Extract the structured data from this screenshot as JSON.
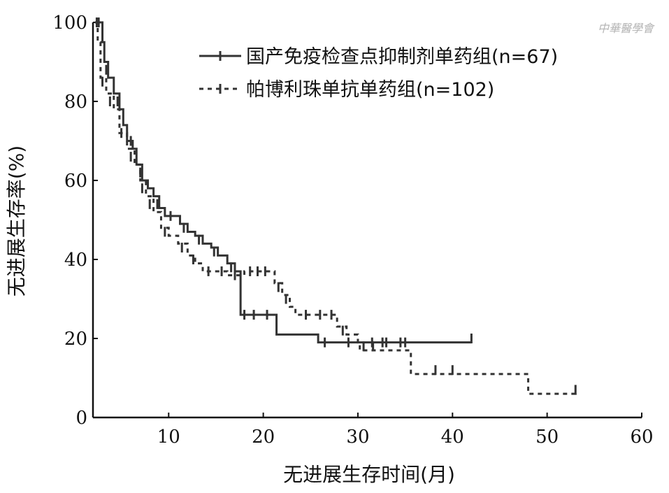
{
  "watermark": "中華醫學會",
  "chart_data": {
    "type": "line",
    "title": "",
    "xlabel": "无进展生存时间(月)",
    "ylabel": "无进展生存率(%)",
    "xlim": [
      2,
      60
    ],
    "ylim": [
      0,
      100
    ],
    "xticks": [
      10,
      20,
      30,
      40,
      50,
      60
    ],
    "yticks": [
      0,
      20,
      40,
      60,
      80,
      100
    ],
    "grid": false,
    "legend_position": "top-right",
    "series": [
      {
        "name": "国产免疫检查点抑制剂单药组(n=67)",
        "style": "solid",
        "color": "#333333",
        "points": [
          [
            2.3,
            100
          ],
          [
            2.8,
            100
          ],
          [
            3.0,
            95
          ],
          [
            3.2,
            90
          ],
          [
            3.6,
            86
          ],
          [
            4.2,
            82
          ],
          [
            4.8,
            78
          ],
          [
            5.2,
            74
          ],
          [
            5.6,
            70
          ],
          [
            6.2,
            68
          ],
          [
            6.6,
            64
          ],
          [
            7.2,
            60
          ],
          [
            7.8,
            58
          ],
          [
            8.4,
            56
          ],
          [
            9.0,
            53
          ],
          [
            9.6,
            51
          ],
          [
            10.5,
            51
          ],
          [
            11.2,
            49
          ],
          [
            12.0,
            47
          ],
          [
            12.8,
            46
          ],
          [
            13.6,
            44
          ],
          [
            14.5,
            43
          ],
          [
            15.2,
            41
          ],
          [
            16.2,
            39
          ],
          [
            17.0,
            37
          ],
          [
            17.6,
            34
          ],
          [
            17.6,
            26
          ],
          [
            19.5,
            26
          ],
          [
            20.8,
            26
          ],
          [
            21.4,
            21
          ],
          [
            25.6,
            21
          ],
          [
            25.8,
            19
          ],
          [
            42.0,
            19
          ]
        ],
        "censor_marks": [
          [
            2.6,
            100
          ],
          [
            3.4,
            88
          ],
          [
            4.6,
            80
          ],
          [
            6.0,
            70
          ],
          [
            7.0,
            62
          ],
          [
            8.8,
            54
          ],
          [
            10.2,
            51
          ],
          [
            11.6,
            48
          ],
          [
            13.2,
            45
          ],
          [
            14.8,
            42
          ],
          [
            16.6,
            38
          ],
          [
            18.0,
            26
          ],
          [
            19.0,
            26
          ],
          [
            20.4,
            26
          ],
          [
            26.5,
            19
          ],
          [
            29.0,
            19
          ],
          [
            31.5,
            19
          ],
          [
            33.0,
            19
          ],
          [
            35.0,
            19
          ],
          [
            42.0,
            20
          ]
        ]
      },
      {
        "name": "帕博利珠单抗单药组(n=102)",
        "style": "dashed",
        "color": "#333333",
        "points": [
          [
            2.2,
            100
          ],
          [
            2.5,
            95
          ],
          [
            2.8,
            86
          ],
          [
            3.4,
            82
          ],
          [
            4.2,
            78
          ],
          [
            4.8,
            72
          ],
          [
            5.6,
            68
          ],
          [
            6.4,
            64
          ],
          [
            7.0,
            60
          ],
          [
            7.6,
            56
          ],
          [
            8.4,
            52
          ],
          [
            9.2,
            48
          ],
          [
            10.0,
            46
          ],
          [
            11.0,
            44
          ],
          [
            12.0,
            41
          ],
          [
            12.8,
            39
          ],
          [
            13.6,
            37
          ],
          [
            15.0,
            37
          ],
          [
            16.2,
            36
          ],
          [
            17.2,
            36
          ],
          [
            18.0,
            37
          ],
          [
            20.4,
            37
          ],
          [
            21.2,
            34
          ],
          [
            22.0,
            31
          ],
          [
            22.8,
            28
          ],
          [
            23.4,
            26
          ],
          [
            27.0,
            26
          ],
          [
            27.8,
            23
          ],
          [
            28.8,
            21
          ],
          [
            30.0,
            19
          ],
          [
            30.2,
            17
          ],
          [
            35.4,
            17
          ],
          [
            35.6,
            11
          ],
          [
            47.8,
            11
          ],
          [
            48.0,
            6
          ],
          [
            53.0,
            6
          ],
          [
            53.0,
            7
          ]
        ],
        "censor_marks": [
          [
            2.4,
            100
          ],
          [
            3.0,
            85
          ],
          [
            3.8,
            80
          ],
          [
            5.0,
            72
          ],
          [
            6.0,
            66
          ],
          [
            7.2,
            58
          ],
          [
            8.0,
            54
          ],
          [
            9.6,
            47
          ],
          [
            11.4,
            43
          ],
          [
            12.6,
            40
          ],
          [
            14.2,
            37
          ],
          [
            15.6,
            37
          ],
          [
            17.0,
            36
          ],
          [
            18.6,
            37
          ],
          [
            19.4,
            37
          ],
          [
            20.2,
            37
          ],
          [
            21.6,
            33
          ],
          [
            22.4,
            30
          ],
          [
            24.5,
            26
          ],
          [
            26.0,
            26
          ],
          [
            27.2,
            26
          ],
          [
            28.4,
            22
          ],
          [
            30.6,
            18
          ],
          [
            31.6,
            18
          ],
          [
            32.6,
            19
          ],
          [
            34.5,
            19
          ],
          [
            38.2,
            12
          ],
          [
            40.0,
            12
          ],
          [
            53.0,
            7
          ]
        ]
      }
    ]
  }
}
